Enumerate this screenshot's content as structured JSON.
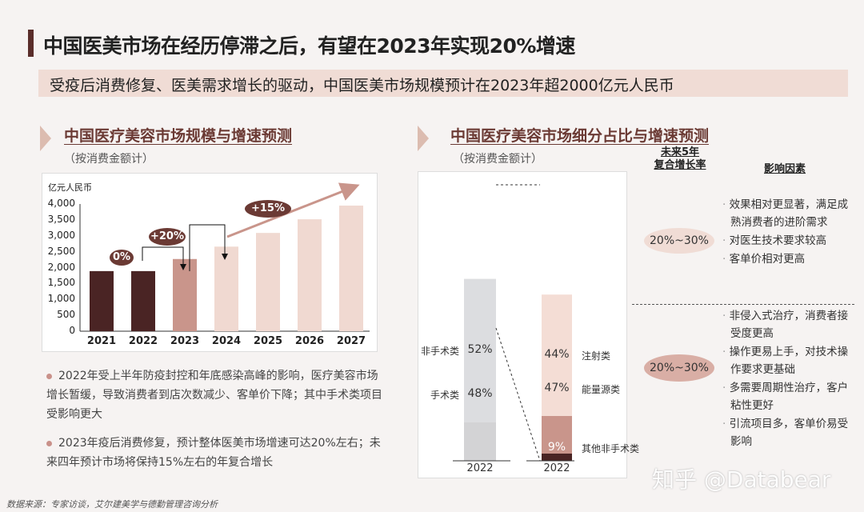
{
  "title": "中国医美市场在经历停滞之后，有望在2023年实现20%增速",
  "subtitle": "受疫后消费修复、医美需求增长的驱动，中国医美市场规模预计在2023年超2000亿元人民币",
  "left": {
    "heading": "中国医疗美容市场规模与增速预测",
    "note": "（按消费金额计）",
    "bullets": [
      "2022年受上半年防疫封控和年底感染高峰的影响，医疗美容市场增长暂缓，导致消费者到店次数减少、客单价下降；其中手术类项目受影响更大",
      "2023年疫后消费修复，预计整体医美市场增速可达20%左右；未来四年预计市场将保持15%左右的年复合增长"
    ]
  },
  "right": {
    "heading": "中国医疗美容市场细分占比与增速预测",
    "note": "（按消费金额计）",
    "col_cagr_l1": "未来5年",
    "col_cagr_l2": "复合增长率",
    "col_factors": "影响因素",
    "rows": [
      {
        "cagr": "20%~30%",
        "factors": [
          "效果相对更显著，满足成熟消费者的进阶需求",
          "对医生技术要求较高",
          "客单价相对更高"
        ]
      },
      {
        "cagr": "20%~30%",
        "factors": [
          "非侵入式治疗，消费者接受度更高",
          "操作更易上手，对技术操作要求更基础",
          "多需要周期性治疗，客户粘性更好",
          "引流项目多，客单价易受影响"
        ]
      }
    ]
  },
  "source": "数据来源：专家访谈，艾尔建美学与德勤管理咨询分析",
  "watermark": "知乎 @Databear",
  "chart_data": [
    {
      "type": "bar",
      "title": "中国医疗美容市场规模与增速预测",
      "ylabel": "亿元人民币",
      "categories": [
        "2021",
        "2022",
        "2023",
        "2024",
        "2025",
        "2026",
        "2027"
      ],
      "values": [
        1890,
        1890,
        2270,
        2660,
        3090,
        3520,
        3950
      ],
      "colors": [
        "#4a2424",
        "#4a2424",
        "#c9958b",
        "#f0d9d1",
        "#f0d9d1",
        "#f0d9d1",
        "#f0d9d1"
      ],
      "ylim": [
        0,
        4000
      ],
      "yticks": [
        "0",
        "500",
        "1,000",
        "1,500",
        "2,000",
        "2,500",
        "3,000",
        "3,500",
        "4,000"
      ],
      "annotations": [
        "0%",
        "+20%",
        "+15%"
      ]
    },
    {
      "type": "bar",
      "stacked": true,
      "categories": [
        "2022",
        "2022"
      ],
      "series": [
        {
          "bar": 0,
          "segments": [
            {
              "name": "手术类",
              "value": 48,
              "label": "48%",
              "color": "#d3d3d5"
            },
            {
              "name": "非手术类",
              "value": 52,
              "label": "52%",
              "color": "#dcdde0"
            }
          ]
        },
        {
          "bar": 1,
          "segments": [
            {
              "name": "其他非手术类",
              "value": 9,
              "label": "9%",
              "color": "#4a2424"
            },
            {
              "name": "能量源类",
              "value": 47,
              "label": "47%",
              "color": "#c9958b"
            },
            {
              "name": "注射类",
              "value": 44,
              "label": "44%",
              "color": "#f4ddd5"
            }
          ]
        }
      ]
    }
  ]
}
